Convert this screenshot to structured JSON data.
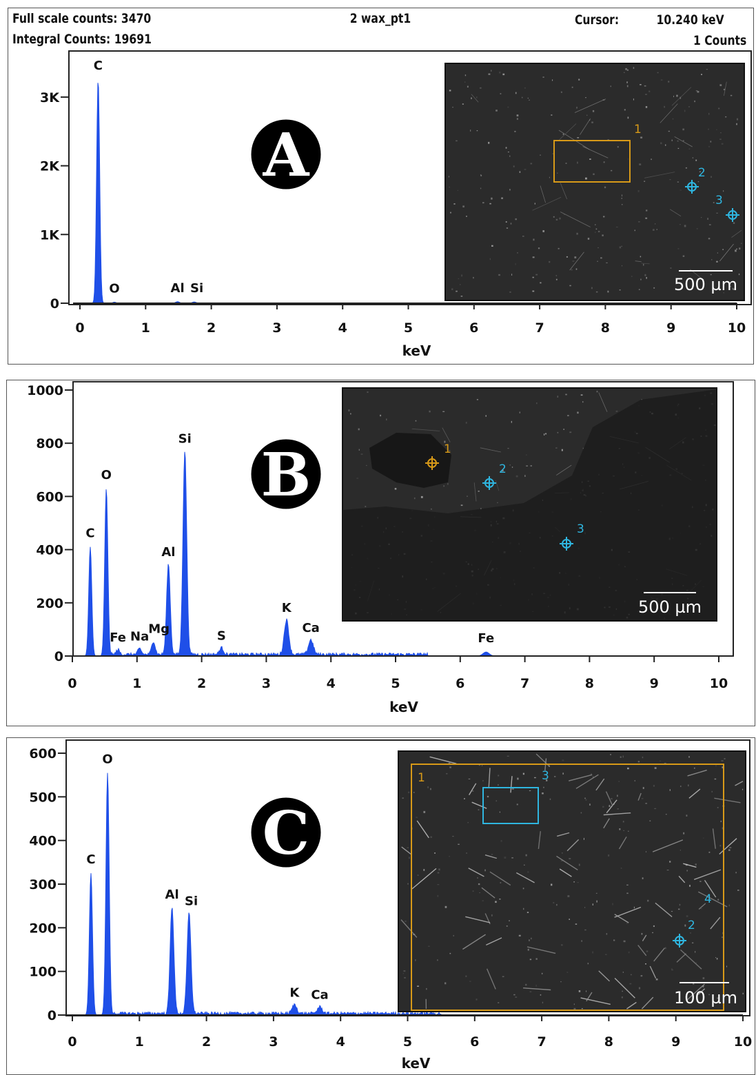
{
  "colors": {
    "spectrum": "#1f4fe8",
    "marker_orange": "#d89a18",
    "marker_cyan": "#2fb6e0",
    "micrograph_bg": "#2b2b2b"
  },
  "panel_a": {
    "header": {
      "full_scale": "Full scale counts: 3470",
      "integral": "Integral Counts: 19691",
      "spectrum_name": "2 wax_pt1",
      "cursor_label": "Cursor:",
      "cursor_value": "10.240 keV",
      "counts": "1 Counts"
    },
    "badge": "A",
    "micrograph": {
      "markers": [
        "1",
        "2",
        "3"
      ],
      "scale_bar": "500 µm"
    }
  },
  "panel_b": {
    "badge": "B",
    "micrograph": {
      "markers": [
        "1",
        "2",
        "3"
      ],
      "scale_bar": "500 µm"
    }
  },
  "panel_c": {
    "badge": "C",
    "micrograph": {
      "markers": [
        "1",
        "2",
        "3",
        "4"
      ],
      "scale_bar": "100 µm"
    }
  },
  "chart_data": [
    {
      "type": "line",
      "xlabel": "keV",
      "ylabel": "",
      "xlim": [
        0,
        10
      ],
      "ylim": [
        0,
        3470
      ],
      "x_ticks": [
        "0",
        "1",
        "2",
        "3",
        "4",
        "5",
        "6",
        "7",
        "8",
        "9",
        "10"
      ],
      "y_ticks": [
        "0",
        "1K",
        "2K",
        "3K"
      ],
      "y_tick_values": [
        0,
        1000,
        2000,
        3000
      ],
      "peaks": [
        {
          "label": "C",
          "energy": 0.277,
          "counts": 3260
        },
        {
          "label": "O",
          "energy": 0.525,
          "counts": 15
        },
        {
          "label": "Al",
          "energy": 1.486,
          "counts": 22
        },
        {
          "label": "Si",
          "energy": 1.74,
          "counts": 18
        }
      ]
    },
    {
      "type": "line",
      "xlabel": "keV",
      "ylabel": "",
      "xlim": [
        0,
        10
      ],
      "ylim": [
        0,
        1000
      ],
      "x_ticks": [
        "0",
        "1",
        "2",
        "3",
        "4",
        "5",
        "6",
        "7",
        "8",
        "9",
        "10"
      ],
      "y_ticks": [
        "0",
        "200",
        "400",
        "600",
        "800",
        "1000"
      ],
      "y_tick_values": [
        0,
        200,
        400,
        600,
        800,
        1000
      ],
      "peaks": [
        {
          "label": "C",
          "energy": 0.277,
          "counts": 410
        },
        {
          "label": "O",
          "energy": 0.525,
          "counts": 630
        },
        {
          "label": "Fe",
          "energy": 0.705,
          "counts": 18
        },
        {
          "label": "Na",
          "energy": 1.041,
          "counts": 22
        },
        {
          "label": "Mg",
          "energy": 1.254,
          "counts": 50
        },
        {
          "label": "Al",
          "energy": 1.486,
          "counts": 340
        },
        {
          "label": "Si",
          "energy": 1.74,
          "counts": 765
        },
        {
          "label": "S",
          "energy": 2.307,
          "counts": 25
        },
        {
          "label": "K",
          "energy": 3.313,
          "counts": 130
        },
        {
          "label": "Ca",
          "energy": 3.69,
          "counts": 55
        },
        {
          "label": "Fe",
          "energy": 6.4,
          "counts": 15
        }
      ]
    },
    {
      "type": "line",
      "xlabel": "keV",
      "ylabel": "",
      "xlim": [
        0,
        10
      ],
      "ylim": [
        0,
        600
      ],
      "x_ticks": [
        "0",
        "1",
        "2",
        "3",
        "4",
        "5",
        "6",
        "7",
        "8",
        "9",
        "10"
      ],
      "y_ticks": [
        "0",
        "100",
        "200",
        "300",
        "400",
        "500",
        "600"
      ],
      "y_tick_values": [
        0,
        100,
        200,
        300,
        400,
        500,
        600
      ],
      "peaks": [
        {
          "label": "C",
          "energy": 0.277,
          "counts": 325
        },
        {
          "label": "O",
          "energy": 0.525,
          "counts": 555
        },
        {
          "label": "Al",
          "energy": 1.486,
          "counts": 245
        },
        {
          "label": "Si",
          "energy": 1.74,
          "counts": 230
        },
        {
          "label": "K",
          "energy": 3.313,
          "counts": 20
        },
        {
          "label": "Ca",
          "energy": 3.69,
          "counts": 15
        }
      ]
    }
  ]
}
